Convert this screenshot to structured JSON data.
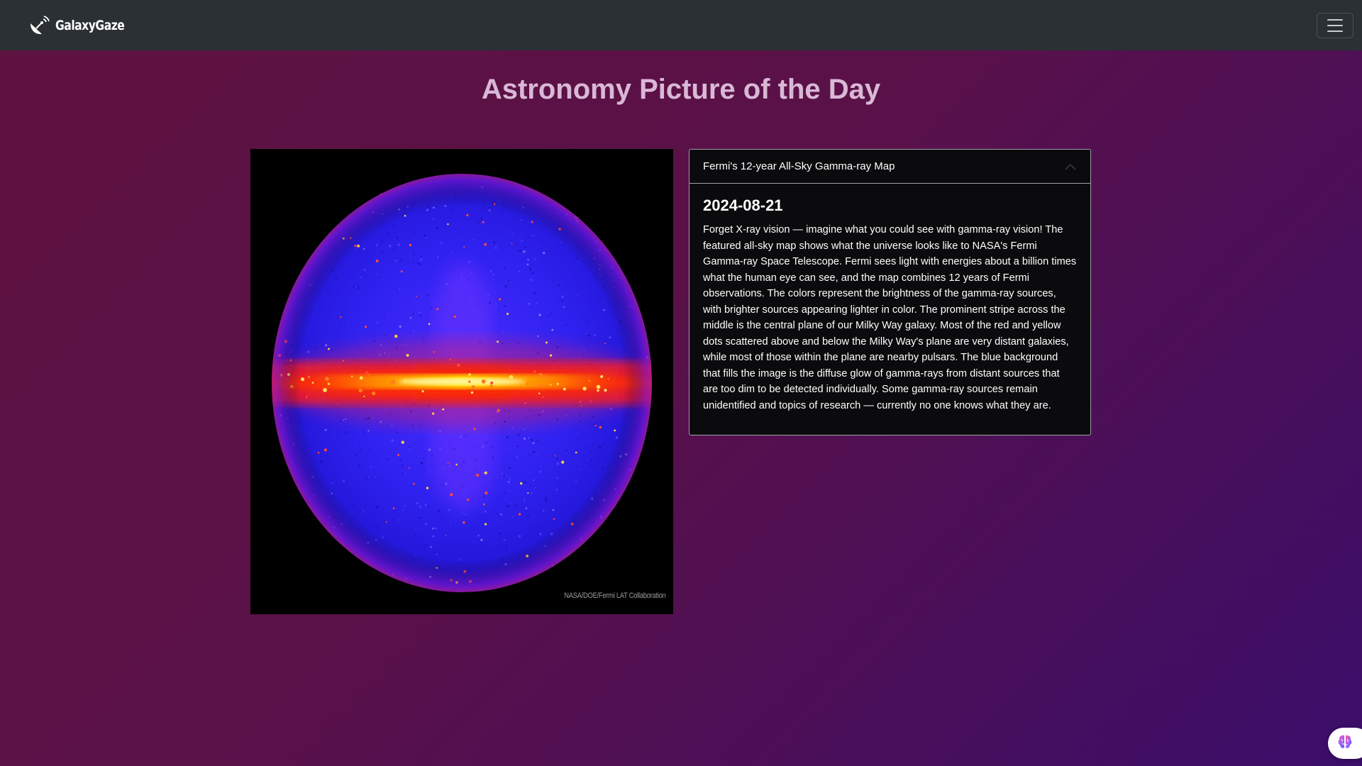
{
  "navbar": {
    "brand_name": "GalaxyGaze",
    "brand_icon": "satellite-dish-icon",
    "menu_icon": "hamburger-menu-icon"
  },
  "page": {
    "title": "Astronomy Picture of the Day"
  },
  "apod": {
    "image_alt_icon": "gamma-ray-sky-map",
    "credit": "NASA/DOE/Fermi LAT Collaboration",
    "title": "Fermi's 12-year All-Sky Gamma-ray Map",
    "date": "2024-08-21",
    "expanded": true,
    "explanation": "Forget X-ray vision — imagine what you could see with gamma-ray vision! The featured all-sky map shows what the universe looks like to NASA's Fermi Gamma-ray Space Telescope. Fermi sees light with energies about a billion times what the human eye can see, and the map combines 12 years of Fermi observations. The colors represent the brightness of the gamma-ray sources, with brighter sources appearing lighter in color. The prominent stripe across the middle is the central plane of our Milky Way galaxy. Most of the red and yellow dots scattered above and below the Milky Way's plane are very distant galaxies, while most of those within the plane are nearby pulsars. The blue background that fills the image is the diffuse glow of gamma-rays from distant sources that are too dim to be detected individually. Some gamma-ray sources remain unidentified and topics of research — currently no one knows what they are."
  },
  "assistant": {
    "icon": "brain-icon"
  },
  "colors": {
    "navbar_bg": "#2b3034",
    "title_color": "#d9b8d6",
    "card_bg": "#0b0b0d",
    "gradient_start": "#5e1240",
    "gradient_end": "#3a0e6a"
  }
}
